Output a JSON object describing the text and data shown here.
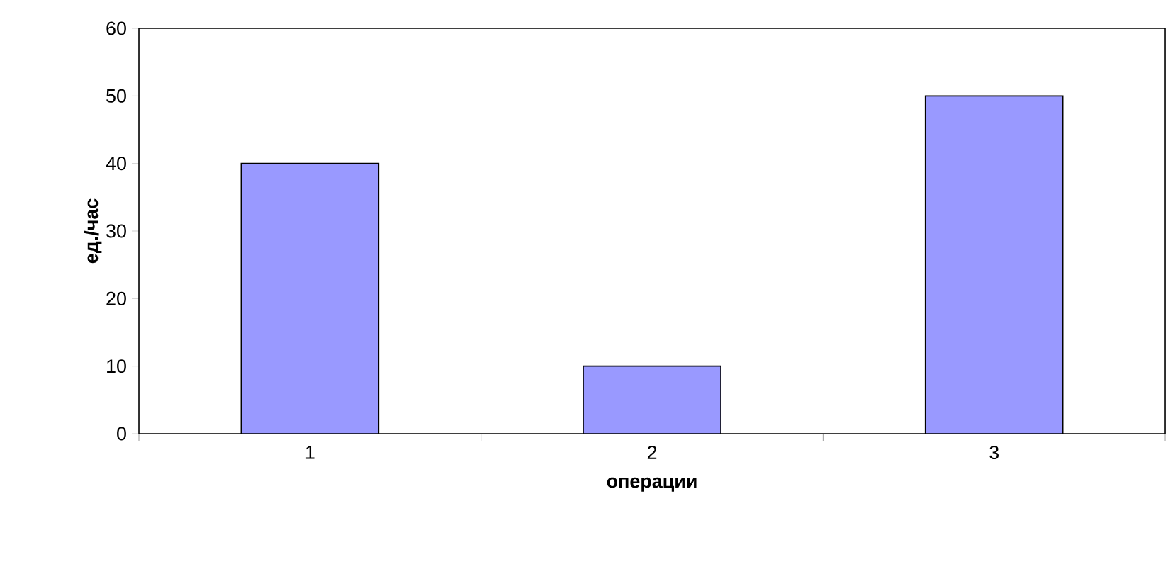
{
  "chart_data": {
    "type": "bar",
    "xlabel": "операции",
    "ylabel": "ед./час",
    "categories": [
      "1",
      "2",
      "3"
    ],
    "values": [
      40,
      10,
      50
    ],
    "color": "#9999ff",
    "ylim": [
      0,
      60
    ],
    "yticks": [
      0,
      10,
      20,
      30,
      40,
      50,
      60
    ],
    "grid": false
  }
}
